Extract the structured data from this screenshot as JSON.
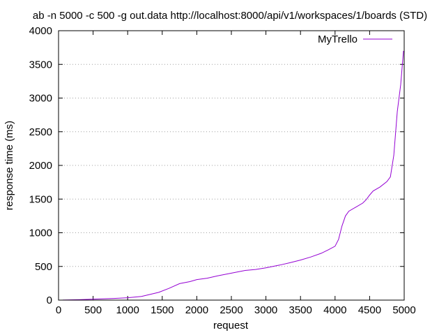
{
  "chart_data": {
    "type": "line",
    "title": "ab -n 5000 -c 500 -g out.data http://localhost:8000/api/v1/workspaces/1/boards (STD)",
    "xlabel": "request",
    "ylabel": "response time (ms)",
    "xlim": [
      0,
      5000
    ],
    "ylim": [
      0,
      4000
    ],
    "x_ticks": [
      0,
      500,
      1000,
      1500,
      2000,
      2500,
      3000,
      3500,
      4000,
      4500,
      5000
    ],
    "y_ticks": [
      0,
      500,
      1000,
      1500,
      2000,
      2500,
      3000,
      3500,
      4000
    ],
    "grid": "horizontal dotted",
    "legend_position": "top-right",
    "series": [
      {
        "name": "MyTrello",
        "color": "#9400d3",
        "x": [
          60,
          300,
          500,
          800,
          1000,
          1200,
          1450,
          1600,
          1750,
          1900,
          2000,
          2150,
          2300,
          2500,
          2700,
          2850,
          3000,
          3200,
          3350,
          3500,
          3650,
          3800,
          3900,
          4000,
          4050,
          4100,
          4150,
          4200,
          4300,
          4400,
          4450,
          4500,
          4550,
          4650,
          4750,
          4800,
          4850,
          4900,
          4950,
          4990
        ],
        "y": [
          1,
          6,
          14,
          25,
          35,
          55,
          115,
          175,
          245,
          275,
          305,
          325,
          360,
          400,
          440,
          455,
          480,
          520,
          555,
          595,
          640,
          695,
          745,
          800,
          900,
          1100,
          1250,
          1320,
          1380,
          1440,
          1490,
          1560,
          1620,
          1680,
          1760,
          1830,
          2150,
          2800,
          3200,
          3700
        ]
      }
    ]
  }
}
